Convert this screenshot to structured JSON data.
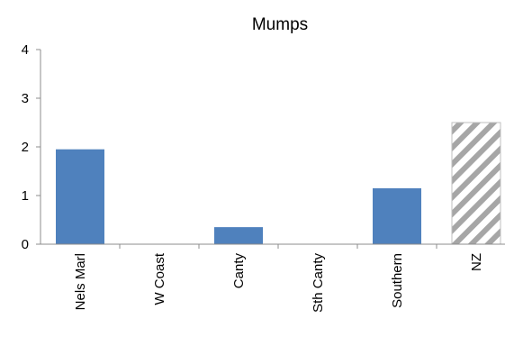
{
  "chart_data": {
    "type": "bar",
    "title": "Mumps",
    "xlabel": "",
    "ylabel": "",
    "categories": [
      "Nels Marl",
      "W Coast",
      "Canty",
      "Sth Canty",
      "Southern",
      "NZ"
    ],
    "values": [
      1.95,
      0,
      0.35,
      0,
      1.15,
      2.5
    ],
    "ylim": [
      0,
      4
    ],
    "yticks": [
      0,
      1,
      2,
      3,
      4
    ],
    "grid": false,
    "legend": "none",
    "bar_style": [
      "solid",
      "solid",
      "solid",
      "solid",
      "solid",
      "hatched"
    ],
    "colors": {
      "bar": "#4f81bd",
      "hatch": "#a6a6a6",
      "axis": "#8c8c8c"
    }
  }
}
